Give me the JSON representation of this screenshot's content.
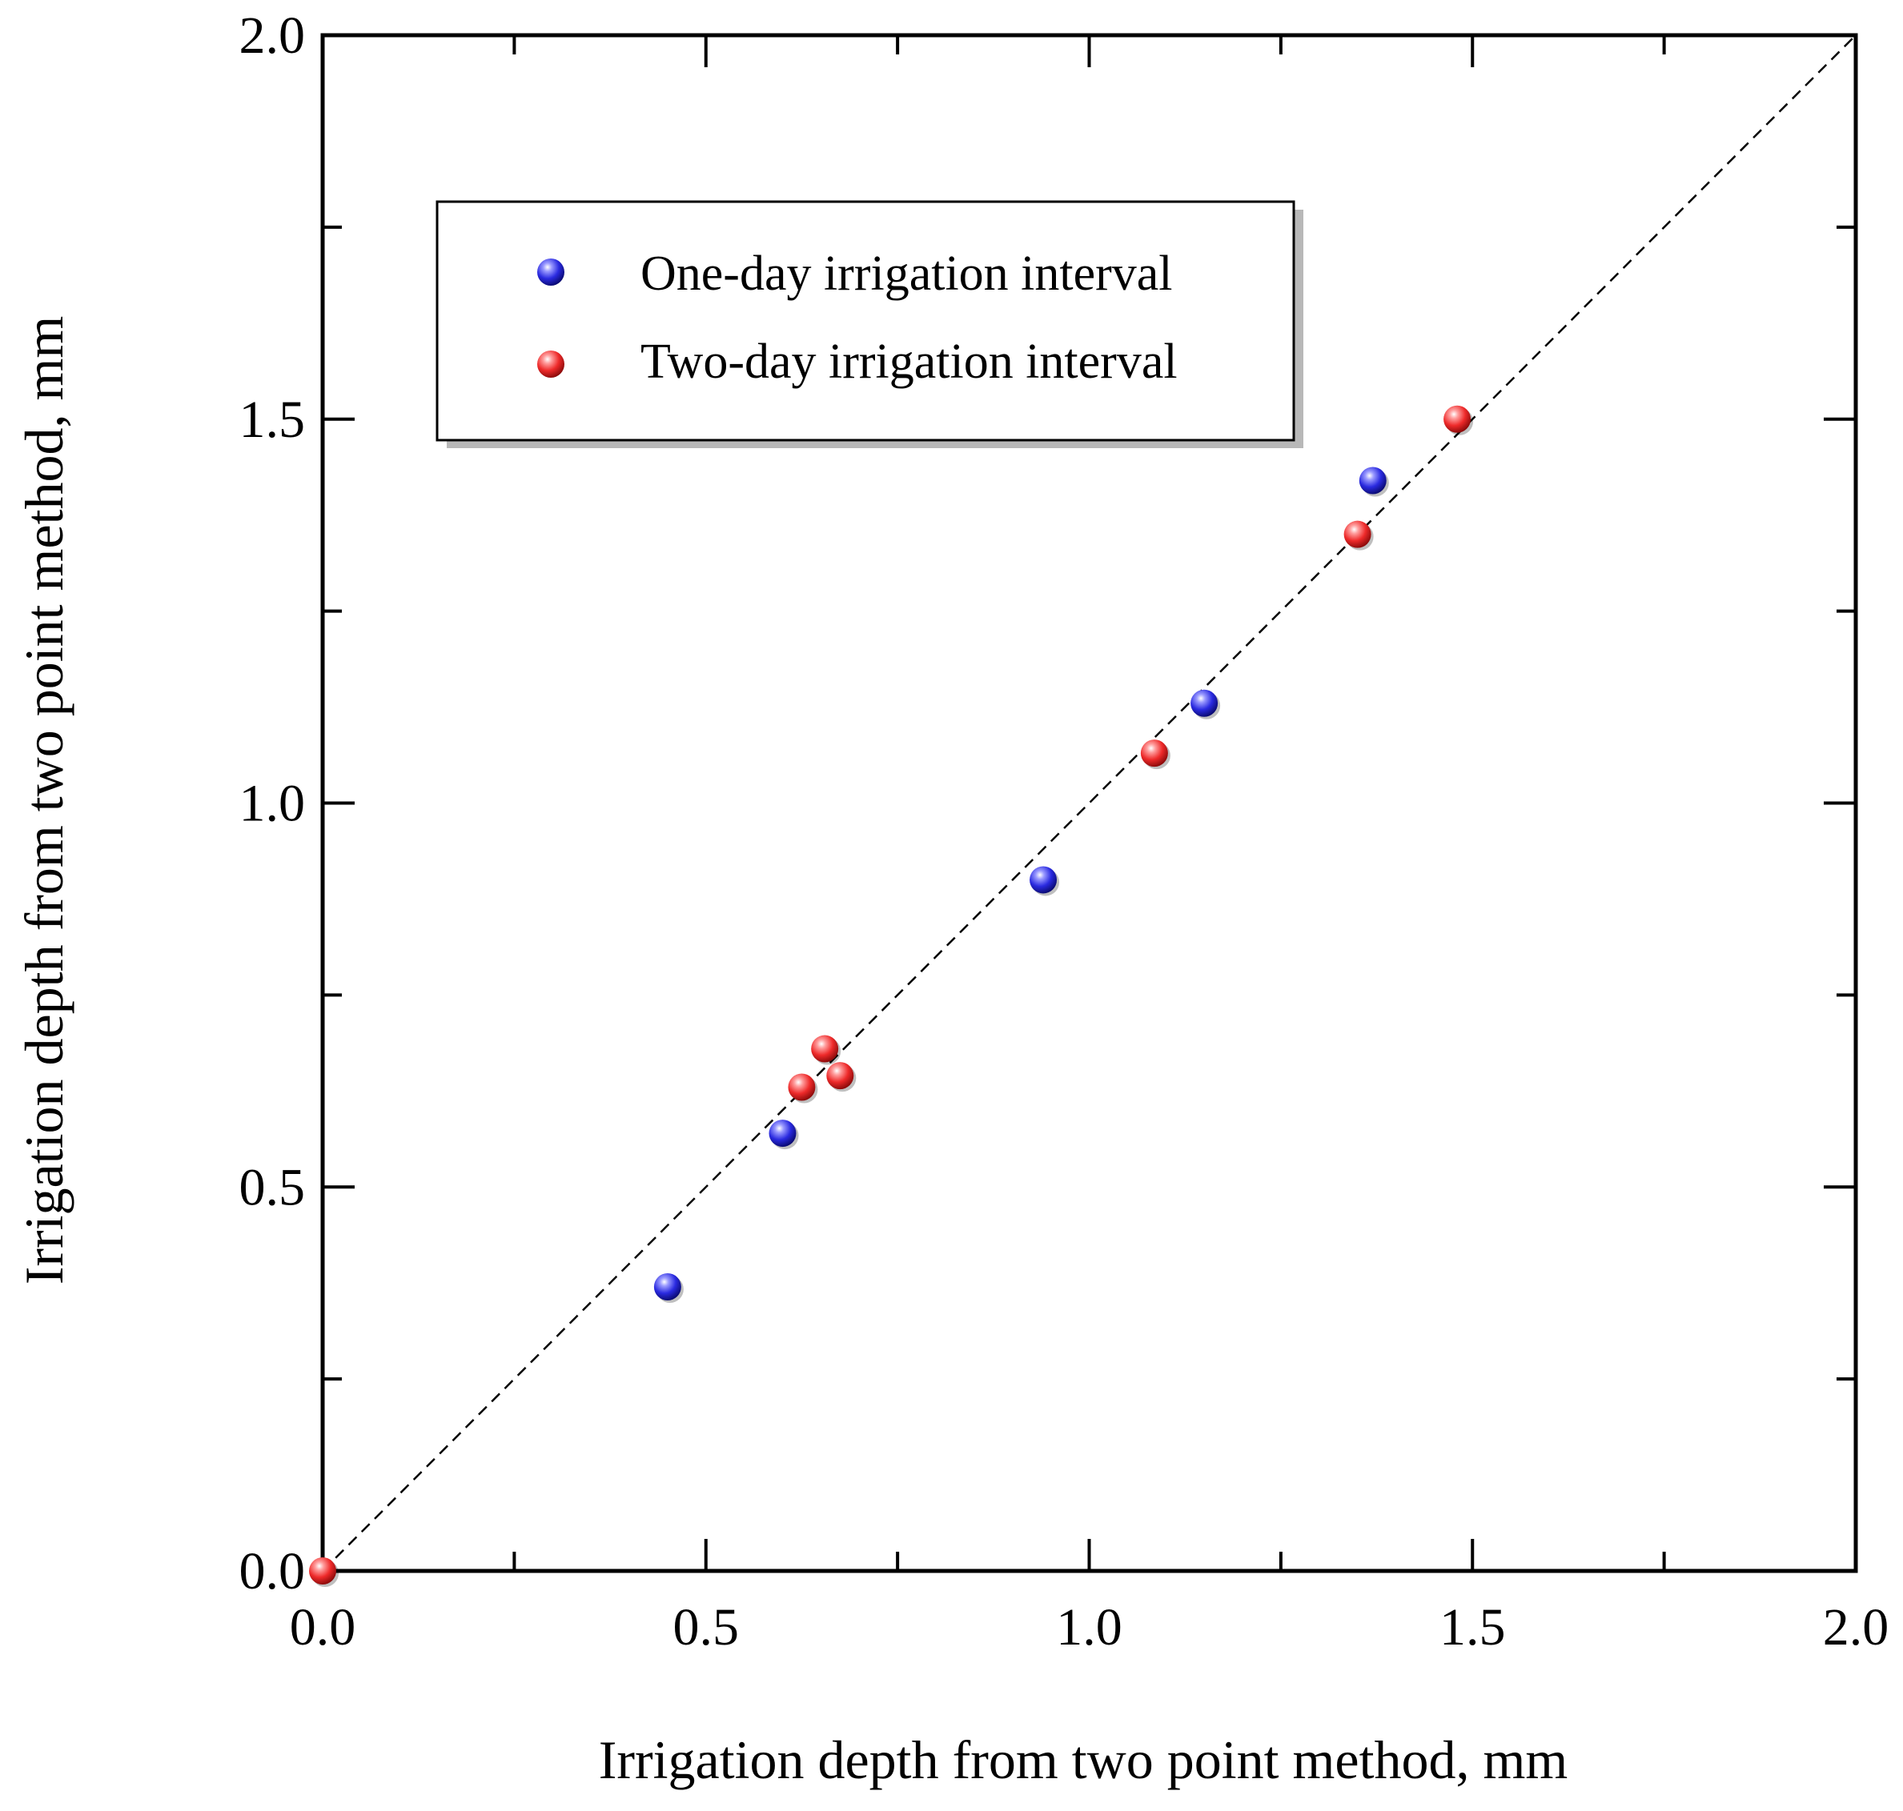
{
  "chart_data": {
    "type": "scatter",
    "title": "",
    "xlabel": "Irrigation depth from two point method, mm",
    "ylabel": "Irrigation depth from two point method, mm",
    "xlim": [
      0.0,
      2.0
    ],
    "ylim": [
      0.0,
      2.0
    ],
    "xticks": [
      0.0,
      0.5,
      1.0,
      1.5,
      2.0
    ],
    "yticks": [
      0.0,
      0.5,
      1.0,
      1.5,
      2.0
    ],
    "xtick_labels": [
      "0.0",
      "0.5",
      "1.0",
      "1.5",
      "2.0"
    ],
    "ytick_labels": [
      "0.0",
      "0.5",
      "1.0",
      "1.5",
      "2.0"
    ],
    "minor_tick_step": 0.25,
    "grid": false,
    "legend_position": "top-left",
    "reference_line": {
      "name": "1:1 line",
      "style": "dashed",
      "x": [
        0.0,
        2.0
      ],
      "y": [
        0.0,
        2.0
      ]
    },
    "series": [
      {
        "name": "One-day irrigation interval",
        "color": "#2a2ae0",
        "x": [
          0.45,
          0.6,
          0.94,
          1.15,
          1.37
        ],
        "y": [
          0.37,
          0.57,
          0.9,
          1.13,
          1.42
        ]
      },
      {
        "name": "Two-day irrigation interval",
        "color": "#ee2a2a",
        "x": [
          0.0,
          0.625,
          0.655,
          0.675,
          1.085,
          1.35,
          1.48
        ],
        "y": [
          0.0,
          0.63,
          0.68,
          0.645,
          1.065,
          1.35,
          1.5
        ]
      }
    ]
  }
}
